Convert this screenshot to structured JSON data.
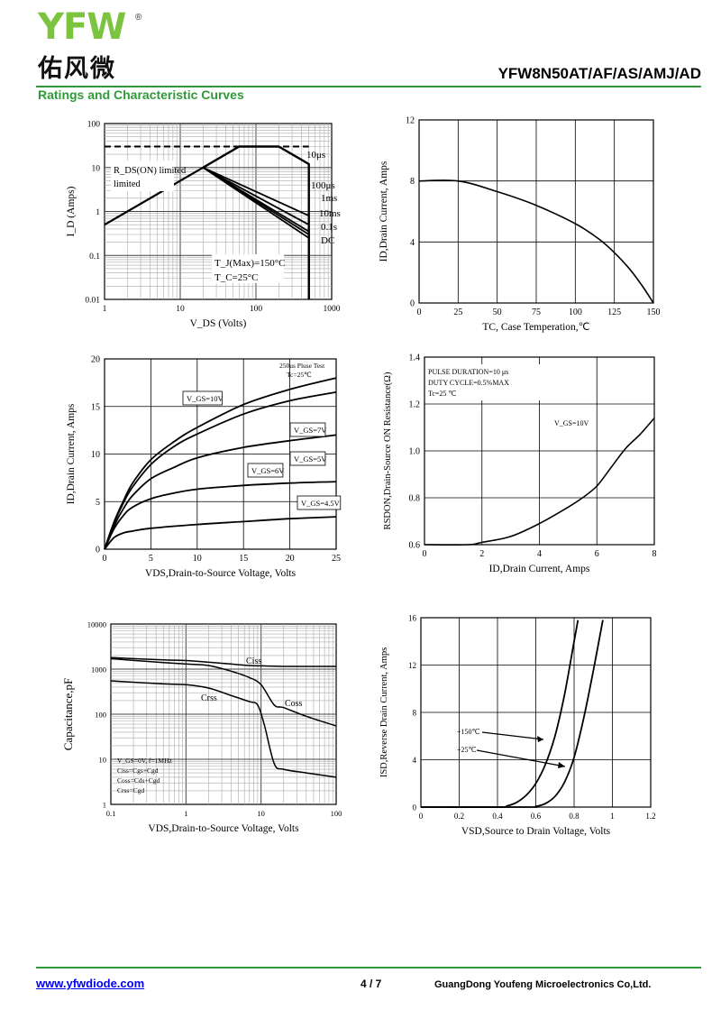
{
  "header": {
    "logo_text": "YFW",
    "logo_registered": "®",
    "logo_chinese": "佑风微",
    "part_number": "YFW8N50AT/AF/AS/AMJ/AD",
    "section_title": "Ratings and Characteristic Curves",
    "brand_color": "#2f9a3a"
  },
  "footer": {
    "website": "www.yfwdiode.com",
    "page": "4 / 7",
    "company": "GuangDong Youfeng Microelectronics Co,Ltd."
  },
  "chart_data": [
    {
      "type": "line",
      "scale": "log-log",
      "xlabel": "V_DS (Volts)",
      "ylabel": "I_D (Amps)",
      "xlim": [
        1,
        1000
      ],
      "ylim": [
        0.01,
        100
      ],
      "xticks": [
        "1",
        "10",
        "100",
        "1000"
      ],
      "yticks": [
        "100",
        "10",
        "1",
        "0.1",
        "0.01"
      ],
      "rds_limit": {
        "label": "R_DS(ON) limited",
        "points": [
          [
            1,
            0.5
          ],
          [
            20,
            10
          ]
        ]
      },
      "dashed_limit_y": 30,
      "series": [
        {
          "name": "10μs",
          "points": [
            [
              20,
              10
            ],
            [
              60,
              30
            ],
            [
              200,
              30
            ],
            [
              500,
              12
            ],
            [
              500,
              0.01
            ]
          ]
        },
        {
          "name": "100μs",
          "points": [
            [
              20,
              10
            ],
            [
              500,
              0.8
            ],
            [
              500,
              0.01
            ]
          ]
        },
        {
          "name": "1ms",
          "points": [
            [
              20,
              10
            ],
            [
              500,
              0.5
            ],
            [
              500,
              0.01
            ]
          ]
        },
        {
          "name": "10ms",
          "points": [
            [
              20,
              10
            ],
            [
              500,
              0.35
            ],
            [
              500,
              0.01
            ]
          ]
        },
        {
          "name": "0.1s",
          "points": [
            [
              20,
              10
            ],
            [
              500,
              0.3
            ],
            [
              500,
              0.01
            ]
          ]
        },
        {
          "name": "DC",
          "points": [
            [
              20,
              10
            ],
            [
              500,
              0.25
            ],
            [
              500,
              0.01
            ]
          ]
        }
      ],
      "note1": "T_J(Max)=150°C",
      "note2": "T_C=25°C"
    },
    {
      "type": "line",
      "xlabel": "TC, Case Temperation,℃",
      "ylabel": "ID,Drain Current, Amps",
      "xlim": [
        0,
        150
      ],
      "ylim": [
        0,
        12
      ],
      "xticks": [
        "0",
        "25",
        "50",
        "75",
        "100",
        "125",
        "150"
      ],
      "yticks": [
        "0",
        "4",
        "8",
        "12"
      ],
      "series": [
        {
          "points": [
            [
              0,
              8
            ],
            [
              25,
              8
            ],
            [
              50,
              7.3
            ],
            [
              75,
              6.4
            ],
            [
              100,
              5.2
            ],
            [
              115,
              4.2
            ],
            [
              125,
              3.3
            ],
            [
              135,
              2.2
            ],
            [
              143,
              1.1
            ],
            [
              150,
              0
            ]
          ]
        }
      ]
    },
    {
      "type": "line",
      "xlabel": "VDS,Drain-to-Source Voltage, Volts",
      "ylabel": "ID,Drain Current, Amps",
      "xlim": [
        0,
        25
      ],
      "ylim": [
        0,
        20
      ],
      "xticks": [
        "0",
        "5",
        "10",
        "15",
        "20",
        "25"
      ],
      "yticks": [
        "0",
        "5",
        "10",
        "15",
        "20"
      ],
      "note1": "250us Pluse Test",
      "note2": "Tc=25℃",
      "series": [
        {
          "name": "V_GS=10V",
          "points": [
            [
              0,
              0
            ],
            [
              1,
              2.8
            ],
            [
              2,
              5
            ],
            [
              3,
              6.9
            ],
            [
              5,
              9.4
            ],
            [
              7.5,
              11.3
            ],
            [
              10,
              12.8
            ],
            [
              15,
              15.2
            ],
            [
              20,
              16.8
            ],
            [
              25,
              18
            ]
          ]
        },
        {
          "name": "V_GS=7V",
          "points": [
            [
              0,
              0
            ],
            [
              1,
              2.7
            ],
            [
              2,
              4.8
            ],
            [
              3,
              6.5
            ],
            [
              5,
              8.9
            ],
            [
              7.5,
              10.8
            ],
            [
              10,
              12.1
            ],
            [
              15,
              14.2
            ],
            [
              20,
              15.6
            ],
            [
              25,
              16.5
            ]
          ]
        },
        {
          "name": "V_GS=5V",
          "points": [
            [
              0,
              0
            ],
            [
              1,
              2.4
            ],
            [
              2,
              4.2
            ],
            [
              3,
              5.6
            ],
            [
              5,
              7.4
            ],
            [
              7.5,
              8.6
            ],
            [
              10,
              9.6
            ],
            [
              15,
              10.7
            ],
            [
              20,
              11.4
            ],
            [
              25,
              12
            ]
          ]
        },
        {
          "name": "V_GS=6V",
          "points": [
            [
              0,
              0
            ],
            [
              1,
              2.1
            ],
            [
              2,
              3.5
            ],
            [
              3,
              4.4
            ],
            [
              5,
              5.3
            ],
            [
              7.5,
              5.9
            ],
            [
              10,
              6.3
            ],
            [
              15,
              6.7
            ],
            [
              20,
              6.95
            ],
            [
              25,
              7.1
            ]
          ]
        },
        {
          "name": "V_GS=4.5V",
          "points": [
            [
              0,
              0
            ],
            [
              1,
              1.2
            ],
            [
              2,
              1.7
            ],
            [
              3,
              1.9
            ],
            [
              5,
              2.2
            ],
            [
              10,
              2.6
            ],
            [
              15,
              2.9
            ],
            [
              20,
              3.2
            ],
            [
              25,
              3.4
            ]
          ]
        }
      ]
    },
    {
      "type": "line",
      "xlabel": "ID,Drain Current, Amps",
      "ylabel": "RSDON,Drain-Source ON Resistance(Ω)",
      "xlim": [
        0,
        8
      ],
      "ylim": [
        0.6,
        1.4
      ],
      "xticks": [
        "0",
        "2",
        "4",
        "6",
        "8"
      ],
      "yticks": [
        "0.6",
        "0.8",
        "1.0",
        "1.2",
        "1.4"
      ],
      "note1": "PULSE   DURATION=10 μs",
      "note2": "DUTY   CYCLE=0.5%MAX",
      "note3": "Tc=25 ℃",
      "series": [
        {
          "name": "V_GS=10V",
          "points": [
            [
              0,
              0.6
            ],
            [
              1.5,
              0.6
            ],
            [
              2,
              0.61
            ],
            [
              3,
              0.635
            ],
            [
              4,
              0.69
            ],
            [
              5,
              0.76
            ],
            [
              5.5,
              0.8
            ],
            [
              6,
              0.85
            ],
            [
              6.5,
              0.93
            ],
            [
              7,
              1.01
            ],
            [
              7.5,
              1.07
            ],
            [
              8,
              1.14
            ]
          ]
        }
      ]
    },
    {
      "type": "line",
      "scale": "log-log",
      "xlabel": "VDS,Drain-to-Source Voltage, Volts",
      "ylabel": "Capacitance,pF",
      "xlim": [
        0.1,
        100
      ],
      "ylim": [
        1,
        10000
      ],
      "xticks": [
        "0.1",
        "1",
        "10",
        "100"
      ],
      "yticks": [
        "10000",
        "1000",
        "100",
        "10",
        "1"
      ],
      "note1": "V_GS=0V, f=1MHz",
      "note2": "Ciss=Cgs+Cgd",
      "note3": "Coss=Cds+Cgd",
      "note4": "Crss=Cgd",
      "series": [
        {
          "name": "Ciss",
          "points": [
            [
              0.1,
              1800
            ],
            [
              0.5,
              1600
            ],
            [
              1,
              1550
            ],
            [
              3,
              1350
            ],
            [
              7,
              1200
            ],
            [
              10,
              1180
            ],
            [
              20,
              1150
            ],
            [
              50,
              1150
            ],
            [
              100,
              1150
            ]
          ]
        },
        {
          "name": "Coss",
          "points": [
            [
              0.1,
              1700
            ],
            [
              0.5,
              1400
            ],
            [
              1,
              1300
            ],
            [
              2,
              1200
            ],
            [
              4,
              900
            ],
            [
              7,
              650
            ],
            [
              10,
              450
            ],
            [
              15,
              160
            ],
            [
              20,
              140
            ],
            [
              40,
              90
            ],
            [
              100,
              55
            ]
          ]
        },
        {
          "name": "Crss",
          "points": [
            [
              0.1,
              550
            ],
            [
              0.5,
              470
            ],
            [
              1,
              450
            ],
            [
              2,
              380
            ],
            [
              4,
              260
            ],
            [
              7,
              190
            ],
            [
              9,
              160
            ],
            [
              11,
              60
            ],
            [
              15,
              8
            ],
            [
              20,
              6
            ],
            [
              40,
              5
            ],
            [
              100,
              4
            ]
          ]
        }
      ]
    },
    {
      "type": "line",
      "xlabel": "VSD,Source to Drain Voltage, Volts",
      "ylabel": "ISD,Reverse Drain Current, Amps",
      "xlim": [
        0,
        1.2
      ],
      "ylim": [
        0,
        16
      ],
      "xticks": [
        "0",
        "0.2",
        "0.4",
        "0.6",
        "0.8",
        "1",
        "1.2"
      ],
      "yticks": [
        "0",
        "4",
        "8",
        "12",
        "16"
      ],
      "series": [
        {
          "name": "+150℃",
          "points": [
            [
              0,
              0
            ],
            [
              0.4,
              0
            ],
            [
              0.45,
              0.1
            ],
            [
              0.5,
              0.4
            ],
            [
              0.55,
              1
            ],
            [
              0.6,
              2
            ],
            [
              0.65,
              3.6
            ],
            [
              0.7,
              6
            ],
            [
              0.75,
              9.5
            ],
            [
              0.8,
              14
            ],
            [
              0.82,
              15.8
            ]
          ]
        },
        {
          "name": "+25℃",
          "points": [
            [
              0,
              0
            ],
            [
              0.55,
              0
            ],
            [
              0.6,
              0.05
            ],
            [
              0.65,
              0.3
            ],
            [
              0.7,
              0.9
            ],
            [
              0.75,
              2.1
            ],
            [
              0.8,
              4.2
            ],
            [
              0.85,
              7.5
            ],
            [
              0.9,
              11.5
            ],
            [
              0.95,
              15.8
            ]
          ]
        }
      ]
    }
  ]
}
